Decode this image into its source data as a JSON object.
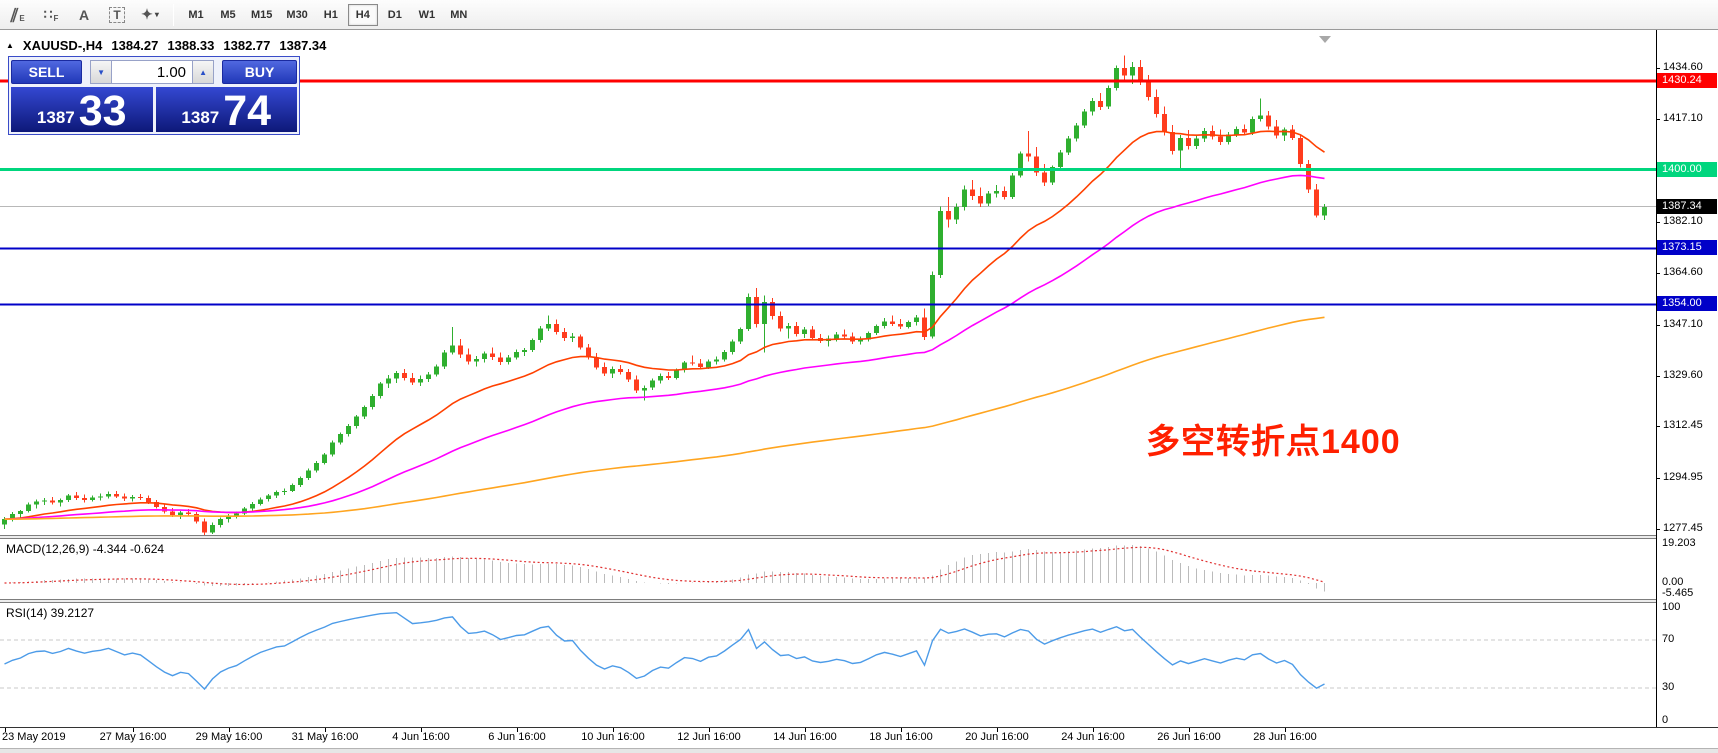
{
  "toolbar": {
    "tools": [
      {
        "name": "equidistant-channel-icon",
        "glyph": "∥",
        "sub": "E"
      },
      {
        "name": "fibonacci-grid-icon",
        "glyph": "∷",
        "sub": "F"
      },
      {
        "name": "text-label-icon",
        "glyph": "A",
        "sub": ""
      },
      {
        "name": "text-box-icon",
        "glyph": "T",
        "sub": "",
        "boxed": true
      },
      {
        "name": "arrows-tool-icon",
        "glyph": "✦",
        "sub": "",
        "caret": "▾"
      }
    ],
    "timeframes": [
      {
        "label": "M1",
        "active": false
      },
      {
        "label": "M5",
        "active": false
      },
      {
        "label": "M15",
        "active": false
      },
      {
        "label": "M30",
        "active": false
      },
      {
        "label": "H1",
        "active": false
      },
      {
        "label": "H4",
        "active": true
      },
      {
        "label": "D1",
        "active": false
      },
      {
        "label": "W1",
        "active": false
      },
      {
        "label": "MN",
        "active": false
      }
    ]
  },
  "header": {
    "collapse_glyph": "▲",
    "symbol": "XAUUSD-,H4",
    "open": "1384.27",
    "high": "1388.33",
    "low": "1382.77",
    "close": "1387.34"
  },
  "trade_panel": {
    "sell_label": "SELL",
    "buy_label": "BUY",
    "volume": "1.00",
    "down_glyph": "▼",
    "up_glyph": "▲",
    "sell_prefix": "1387",
    "sell_main": "33",
    "buy_prefix": "1387",
    "buy_main": "74"
  },
  "annotation": {
    "text": "多空转折点1400",
    "color": "#ff2000"
  },
  "price_axis": {
    "ticks": [
      {
        "label": "1434.60",
        "price": 1434.6
      },
      {
        "label": "1417.10",
        "price": 1417.1
      },
      {
        "label": "1382.10",
        "price": 1382.1
      },
      {
        "label": "1364.60",
        "price": 1364.6
      },
      {
        "label": "1347.10",
        "price": 1347.1
      },
      {
        "label": "1329.60",
        "price": 1329.6
      },
      {
        "label": "1312.45",
        "price": 1312.45
      },
      {
        "label": "1294.95",
        "price": 1294.95
      },
      {
        "label": "1277.45",
        "price": 1277.45
      }
    ],
    "line_labels": [
      {
        "label": "1430.24",
        "price": 1430.24,
        "bg": "#ff0000",
        "line_width": 3
      },
      {
        "label": "1400.00",
        "price": 1400.0,
        "bg": "#00d67e",
        "line_width": 3
      },
      {
        "label": "1373.15",
        "price": 1373.15,
        "bg": "#0000c8",
        "line_width": 2
      },
      {
        "label": "1354.00",
        "price": 1354.0,
        "bg": "#0000c8",
        "line_width": 2
      }
    ],
    "current": {
      "label": "1387.34",
      "price": 1387.34,
      "bg": "#000000",
      "line_color": "#b8b8b8"
    }
  },
  "time_axis": {
    "ticks": [
      {
        "label": "23 May 2019",
        "bar": 0
      },
      {
        "label": "27 May 16:00",
        "bar": 16
      },
      {
        "label": "29 May 16:00",
        "bar": 28
      },
      {
        "label": "31 May 16:00",
        "bar": 40
      },
      {
        "label": "4 Jun 16:00",
        "bar": 52
      },
      {
        "label": "6 Jun 16:00",
        "bar": 64
      },
      {
        "label": "10 Jun 16:00",
        "bar": 76
      },
      {
        "label": "12 Jun 16:00",
        "bar": 88
      },
      {
        "label": "14 Jun 16:00",
        "bar": 100
      },
      {
        "label": "18 Jun 16:00",
        "bar": 112
      },
      {
        "label": "20 Jun 16:00",
        "bar": 124
      },
      {
        "label": "24 Jun 16:00",
        "bar": 136
      },
      {
        "label": "26 Jun 16:00",
        "bar": 148
      },
      {
        "label": "28 Jun 16:00",
        "bar": 160
      }
    ]
  },
  "chart_data": {
    "type": "candlestick",
    "symbol": "XAUUSD",
    "timeframe": "H4",
    "up_color": "#2faf2f",
    "down_color": "#ff3c1e",
    "moving_averages": [
      {
        "name": "ma-fast",
        "period": 21,
        "color": "#ff4000"
      },
      {
        "name": "ma-mid",
        "period": 55,
        "color": "#ff00ff"
      },
      {
        "name": "ma-slow",
        "period": 200,
        "color": "#ffa520"
      }
    ],
    "candles": [
      [
        1279.0,
        1281.5,
        1277.5,
        1280.8
      ],
      [
        1280.8,
        1283.2,
        1280.0,
        1282.5
      ],
      [
        1282.5,
        1284.0,
        1281.2,
        1283.6
      ],
      [
        1283.6,
        1286.5,
        1283.0,
        1285.8
      ],
      [
        1285.8,
        1287.6,
        1284.5,
        1286.9
      ],
      [
        1286.9,
        1288.0,
        1285.6,
        1287.2
      ],
      [
        1287.2,
        1288.4,
        1285.8,
        1286.4
      ],
      [
        1286.4,
        1287.8,
        1285.2,
        1287.3
      ],
      [
        1287.3,
        1289.4,
        1286.6,
        1288.8
      ],
      [
        1288.8,
        1290.0,
        1287.4,
        1288.0
      ],
      [
        1288.0,
        1289.2,
        1286.5,
        1287.4
      ],
      [
        1287.4,
        1288.8,
        1286.8,
        1288.2
      ],
      [
        1288.2,
        1289.6,
        1287.2,
        1288.6
      ],
      [
        1288.6,
        1290.2,
        1287.8,
        1289.4
      ],
      [
        1289.4,
        1290.4,
        1288.0,
        1288.6
      ],
      [
        1288.6,
        1289.6,
        1287.0,
        1287.8
      ],
      [
        1287.8,
        1289.0,
        1286.8,
        1288.4
      ],
      [
        1288.4,
        1289.4,
        1287.3,
        1288.0
      ],
      [
        1288.0,
        1288.8,
        1286.0,
        1286.6
      ],
      [
        1286.6,
        1287.4,
        1284.4,
        1285.0
      ],
      [
        1285.0,
        1286.0,
        1282.8,
        1283.4
      ],
      [
        1283.4,
        1284.6,
        1281.6,
        1282.2
      ],
      [
        1282.2,
        1283.6,
        1280.8,
        1283.0
      ],
      [
        1283.0,
        1284.2,
        1281.9,
        1282.6
      ],
      [
        1282.6,
        1283.2,
        1279.4,
        1280.0
      ],
      [
        1280.0,
        1281.0,
        1275.4,
        1276.3
      ],
      [
        1276.3,
        1279.6,
        1275.7,
        1278.8
      ],
      [
        1278.8,
        1281.4,
        1278.0,
        1280.8
      ],
      [
        1280.8,
        1282.6,
        1279.6,
        1282.0
      ],
      [
        1282.0,
        1283.4,
        1281.0,
        1282.8
      ],
      [
        1282.8,
        1285.0,
        1282.2,
        1284.4
      ],
      [
        1284.4,
        1286.6,
        1283.8,
        1286.0
      ],
      [
        1286.0,
        1288.2,
        1285.4,
        1287.6
      ],
      [
        1287.6,
        1289.4,
        1286.8,
        1288.8
      ],
      [
        1288.8,
        1290.6,
        1288.0,
        1290.0
      ],
      [
        1290.0,
        1291.2,
        1289.0,
        1290.4
      ],
      [
        1290.4,
        1293.0,
        1290.0,
        1292.4
      ],
      [
        1292.4,
        1295.4,
        1291.8,
        1294.8
      ],
      [
        1294.8,
        1298.0,
        1294.2,
        1297.4
      ],
      [
        1297.4,
        1300.6,
        1296.8,
        1300.0
      ],
      [
        1300.0,
        1303.4,
        1299.4,
        1302.8
      ],
      [
        1302.8,
        1307.6,
        1302.2,
        1307.0
      ],
      [
        1307.0,
        1310.4,
        1306.2,
        1309.8
      ],
      [
        1309.8,
        1313.2,
        1309.0,
        1312.6
      ],
      [
        1312.6,
        1316.4,
        1311.8,
        1315.8
      ],
      [
        1315.8,
        1319.6,
        1315.0,
        1319.0
      ],
      [
        1319.0,
        1323.4,
        1318.2,
        1322.8
      ],
      [
        1322.8,
        1327.6,
        1322.0,
        1327.0
      ],
      [
        1327.0,
        1330.0,
        1325.6,
        1328.8
      ],
      [
        1328.8,
        1331.4,
        1327.2,
        1330.6
      ],
      [
        1330.6,
        1332.0,
        1328.0,
        1329.0
      ],
      [
        1329.0,
        1330.6,
        1326.6,
        1327.4
      ],
      [
        1327.4,
        1329.8,
        1326.2,
        1328.6
      ],
      [
        1328.6,
        1331.0,
        1327.6,
        1330.2
      ],
      [
        1330.2,
        1333.6,
        1329.4,
        1332.8
      ],
      [
        1332.8,
        1338.4,
        1332.0,
        1337.6
      ],
      [
        1337.6,
        1346.4,
        1337.0,
        1340.0
      ],
      [
        1340.0,
        1342.2,
        1335.8,
        1337.0
      ],
      [
        1337.0,
        1339.0,
        1333.6,
        1334.6
      ],
      [
        1334.6,
        1336.4,
        1332.8,
        1335.4
      ],
      [
        1335.4,
        1338.0,
        1334.2,
        1337.2
      ],
      [
        1337.2,
        1339.4,
        1335.0,
        1336.0
      ],
      [
        1336.0,
        1337.6,
        1333.4,
        1334.4
      ],
      [
        1334.4,
        1336.8,
        1333.6,
        1336.0
      ],
      [
        1336.0,
        1338.6,
        1335.2,
        1337.8
      ],
      [
        1337.8,
        1339.2,
        1336.4,
        1338.4
      ],
      [
        1338.4,
        1342.4,
        1337.8,
        1341.8
      ],
      [
        1341.8,
        1346.6,
        1341.0,
        1345.8
      ],
      [
        1345.8,
        1350.2,
        1345.0,
        1347.4
      ],
      [
        1347.4,
        1348.8,
        1343.8,
        1344.6
      ],
      [
        1344.6,
        1346.0,
        1341.6,
        1342.6
      ],
      [
        1342.6,
        1344.2,
        1341.2,
        1343.0
      ],
      [
        1343.0,
        1343.8,
        1338.6,
        1339.4
      ],
      [
        1339.4,
        1340.6,
        1335.2,
        1336.0
      ],
      [
        1336.0,
        1337.4,
        1331.8,
        1332.6
      ],
      [
        1332.6,
        1334.2,
        1329.6,
        1330.4
      ],
      [
        1330.4,
        1332.8,
        1329.0,
        1332.0
      ],
      [
        1332.0,
        1333.4,
        1330.2,
        1331.0
      ],
      [
        1331.0,
        1332.0,
        1327.6,
        1328.4
      ],
      [
        1328.4,
        1329.8,
        1323.8,
        1324.6
      ],
      [
        1324.6,
        1326.4,
        1321.2,
        1325.6
      ],
      [
        1325.6,
        1328.8,
        1324.8,
        1328.0
      ],
      [
        1328.0,
        1330.4,
        1327.0,
        1329.6
      ],
      [
        1329.6,
        1331.0,
        1328.2,
        1329.0
      ],
      [
        1329.0,
        1332.2,
        1328.4,
        1331.6
      ],
      [
        1331.6,
        1334.8,
        1330.8,
        1334.2
      ],
      [
        1334.2,
        1336.6,
        1333.2,
        1333.8
      ],
      [
        1333.8,
        1335.4,
        1331.8,
        1332.6
      ],
      [
        1332.6,
        1335.2,
        1332.0,
        1334.6
      ],
      [
        1334.6,
        1336.2,
        1333.6,
        1335.2
      ],
      [
        1335.2,
        1338.4,
        1334.6,
        1337.8
      ],
      [
        1337.8,
        1342.0,
        1337.0,
        1341.4
      ],
      [
        1341.4,
        1346.2,
        1340.6,
        1345.6
      ],
      [
        1345.6,
        1357.8,
        1345.0,
        1356.6
      ],
      [
        1356.6,
        1359.6,
        1346.2,
        1347.4
      ],
      [
        1347.4,
        1357.0,
        1337.6,
        1354.8
      ],
      [
        1354.8,
        1356.2,
        1348.8,
        1350.0
      ],
      [
        1350.0,
        1351.6,
        1344.8,
        1345.8
      ],
      [
        1345.8,
        1347.6,
        1342.4,
        1346.6
      ],
      [
        1346.6,
        1348.0,
        1343.0,
        1344.0
      ],
      [
        1344.0,
        1346.4,
        1342.6,
        1345.4
      ],
      [
        1345.4,
        1346.6,
        1341.8,
        1342.6
      ],
      [
        1342.6,
        1344.0,
        1340.8,
        1341.6
      ],
      [
        1341.6,
        1343.4,
        1339.6,
        1342.4
      ],
      [
        1342.4,
        1344.6,
        1341.4,
        1343.8
      ],
      [
        1343.8,
        1345.4,
        1342.2,
        1343.0
      ],
      [
        1343.0,
        1344.4,
        1340.6,
        1341.4
      ],
      [
        1341.4,
        1343.0,
        1340.4,
        1342.0
      ],
      [
        1342.0,
        1344.8,
        1341.4,
        1344.2
      ],
      [
        1344.2,
        1347.2,
        1343.6,
        1346.6
      ],
      [
        1346.6,
        1349.4,
        1345.8,
        1348.2
      ],
      [
        1348.2,
        1350.2,
        1346.6,
        1347.4
      ],
      [
        1347.4,
        1349.0,
        1345.6,
        1346.4
      ],
      [
        1346.4,
        1348.6,
        1345.8,
        1348.0
      ],
      [
        1348.0,
        1350.4,
        1346.8,
        1349.6
      ],
      [
        1349.6,
        1352.6,
        1341.8,
        1343.0
      ],
      [
        1343.0,
        1365.2,
        1342.4,
        1364.0
      ],
      [
        1364.0,
        1387.4,
        1363.0,
        1385.8
      ],
      [
        1385.8,
        1390.6,
        1380.2,
        1383.0
      ],
      [
        1383.0,
        1388.4,
        1381.4,
        1387.2
      ],
      [
        1387.2,
        1394.6,
        1386.0,
        1393.2
      ],
      [
        1393.2,
        1396.4,
        1389.6,
        1391.0
      ],
      [
        1391.0,
        1393.8,
        1387.2,
        1388.4
      ],
      [
        1388.4,
        1392.6,
        1387.6,
        1391.8
      ],
      [
        1391.8,
        1394.8,
        1390.4,
        1392.6
      ],
      [
        1392.6,
        1394.2,
        1389.8,
        1390.6
      ],
      [
        1390.6,
        1398.8,
        1390.0,
        1398.0
      ],
      [
        1398.0,
        1406.2,
        1397.2,
        1405.4
      ],
      [
        1405.4,
        1413.2,
        1402.8,
        1404.4
      ],
      [
        1404.4,
        1407.6,
        1397.8,
        1399.0
      ],
      [
        1399.0,
        1401.8,
        1394.4,
        1395.6
      ],
      [
        1395.6,
        1401.4,
        1394.8,
        1400.8
      ],
      [
        1400.8,
        1406.6,
        1400.0,
        1405.8
      ],
      [
        1405.8,
        1411.4,
        1405.0,
        1410.6
      ],
      [
        1410.6,
        1415.8,
        1409.6,
        1415.0
      ],
      [
        1415.0,
        1420.6,
        1414.2,
        1419.8
      ],
      [
        1419.8,
        1424.4,
        1418.4,
        1423.4
      ],
      [
        1423.4,
        1426.0,
        1420.2,
        1421.4
      ],
      [
        1421.4,
        1428.6,
        1420.6,
        1427.8
      ],
      [
        1427.8,
        1435.4,
        1427.0,
        1434.6
      ],
      [
        1434.6,
        1438.8,
        1430.4,
        1432.0
      ],
      [
        1432.0,
        1436.6,
        1429.2,
        1435.0
      ],
      [
        1435.0,
        1437.4,
        1428.8,
        1430.0
      ],
      [
        1430.0,
        1432.2,
        1423.6,
        1424.8
      ],
      [
        1424.8,
        1427.2,
        1417.8,
        1419.0
      ],
      [
        1419.0,
        1421.4,
        1411.6,
        1412.8
      ],
      [
        1412.8,
        1415.2,
        1405.2,
        1406.4
      ],
      [
        1406.4,
        1411.8,
        1399.6,
        1410.8
      ],
      [
        1410.8,
        1413.4,
        1406.8,
        1408.0
      ],
      [
        1408.0,
        1411.6,
        1407.0,
        1410.6
      ],
      [
        1410.6,
        1414.2,
        1409.4,
        1413.2
      ],
      [
        1413.2,
        1415.0,
        1410.2,
        1411.2
      ],
      [
        1411.2,
        1413.6,
        1408.4,
        1409.4
      ],
      [
        1409.4,
        1412.8,
        1408.6,
        1412.0
      ],
      [
        1412.0,
        1414.6,
        1411.0,
        1413.8
      ],
      [
        1413.8,
        1415.4,
        1411.8,
        1412.6
      ],
      [
        1412.6,
        1418.0,
        1411.8,
        1417.2
      ],
      [
        1417.2,
        1424.2,
        1416.4,
        1418.4
      ],
      [
        1418.4,
        1420.0,
        1413.6,
        1414.6
      ],
      [
        1414.6,
        1416.8,
        1410.6,
        1411.6
      ],
      [
        1411.6,
        1414.4,
        1409.8,
        1413.6
      ],
      [
        1413.6,
        1415.2,
        1410.0,
        1410.8
      ],
      [
        1410.8,
        1411.8,
        1400.6,
        1401.8
      ],
      [
        1401.8,
        1403.2,
        1392.0,
        1393.2
      ],
      [
        1393.2,
        1395.0,
        1383.6,
        1384.3
      ],
      [
        1384.3,
        1388.3,
        1382.8,
        1387.3
      ]
    ]
  },
  "indicators": {
    "macd": {
      "label": "MACD(12,26,9) -4.344 -0.624",
      "fast": 12,
      "slow": 26,
      "signal": 9,
      "axis_labels": [
        "19.203",
        "0.00",
        "-5.465"
      ],
      "hist_color": "#bbbbbb",
      "signal_color": "#e03030"
    },
    "rsi": {
      "label": "RSI(14) 39.2127",
      "period": 14,
      "levels": [
        70,
        30
      ],
      "axis_labels": [
        "100",
        "70",
        "30",
        "0"
      ],
      "line_color": "#4c9be8"
    }
  }
}
